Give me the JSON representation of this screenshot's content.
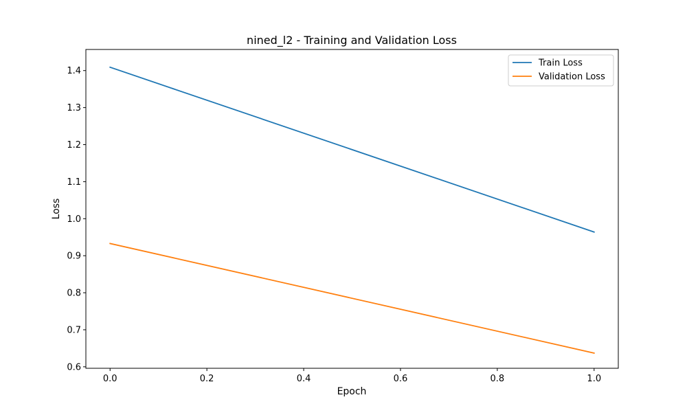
{
  "chart_data": {
    "type": "line",
    "title": "nined_l2 - Training and Validation Loss",
    "xlabel": "Epoch",
    "ylabel": "Loss",
    "x": [
      0.0,
      1.0
    ],
    "xlim": [
      -0.05,
      1.05
    ],
    "ylim": [
      0.596,
      1.457
    ],
    "xticks": [
      0.0,
      0.2,
      0.4,
      0.6,
      0.8,
      1.0
    ],
    "xtick_labels": [
      "0.0",
      "0.2",
      "0.4",
      "0.6",
      "0.8",
      "1.0"
    ],
    "yticks": [
      0.6,
      0.7,
      0.8,
      0.9,
      1.0,
      1.1,
      1.2,
      1.3,
      1.4
    ],
    "ytick_labels": [
      "0.6",
      "0.7",
      "0.8",
      "0.9",
      "1.0",
      "1.1",
      "1.2",
      "1.3",
      "1.4"
    ],
    "grid": false,
    "legend_position": "top-right",
    "series": [
      {
        "name": "Train Loss",
        "color": "#1f77b4",
        "values": [
          1.409,
          0.964
        ]
      },
      {
        "name": "Validation Loss",
        "color": "#ff7f0e",
        "values": [
          0.933,
          0.637
        ]
      }
    ]
  }
}
